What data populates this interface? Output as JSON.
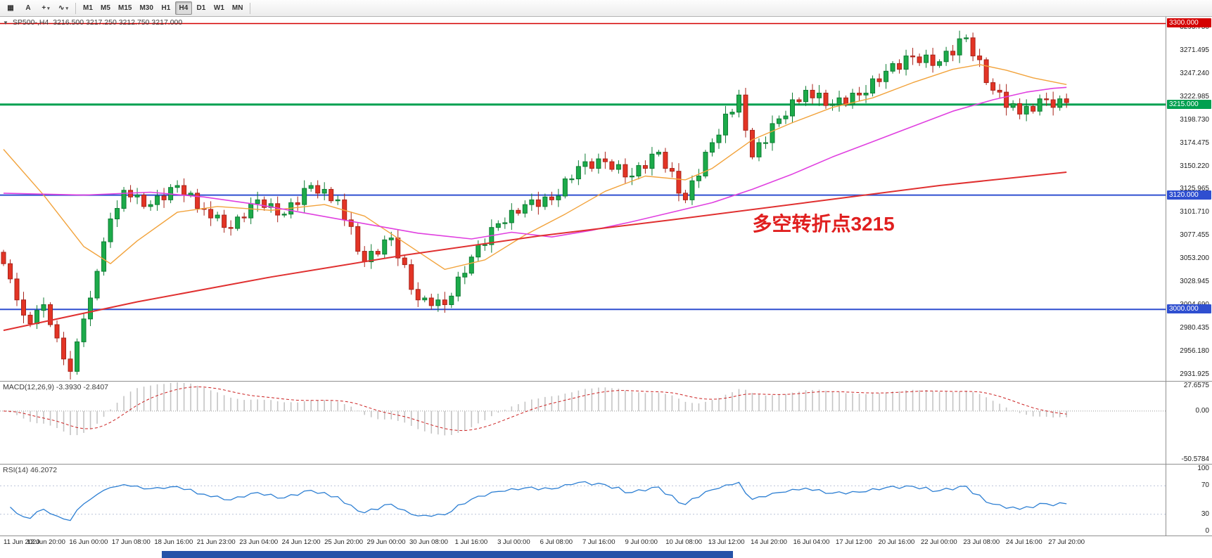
{
  "toolbar": {
    "icons": [
      {
        "name": "tile-windows-icon",
        "glyph": "▦",
        "dropdown": false
      },
      {
        "name": "text-label-icon",
        "glyph": "A",
        "dropdown": false
      },
      {
        "name": "crosshair-icon",
        "glyph": "+",
        "dropdown": true
      },
      {
        "name": "indicators-zigzag-icon",
        "glyph": "∿",
        "dropdown": true
      }
    ],
    "timeframes": [
      {
        "label": "M1",
        "active": false
      },
      {
        "label": "M5",
        "active": false
      },
      {
        "label": "M15",
        "active": false
      },
      {
        "label": "M30",
        "active": false
      },
      {
        "label": "H1",
        "active": false
      },
      {
        "label": "H4",
        "active": true
      },
      {
        "label": "D1",
        "active": false
      },
      {
        "label": "W1",
        "active": false
      },
      {
        "label": "MN",
        "active": false
      }
    ]
  },
  "chart_header": {
    "collapse_icon": "▼",
    "symbol_tf": "SP500-,H4",
    "ohlc": "3216.500 3217.250 3212.750 3217.000"
  },
  "annotation": {
    "text": "多空转折点3215",
    "color": "#e01f1f",
    "index": 112,
    "price": 3085,
    "font_size": 28
  },
  "price_scale": {
    "ticks": [
      3295.75,
      3271.495,
      3247.24,
      3222.985,
      3198.73,
      3174.475,
      3150.22,
      3125.965,
      3101.71,
      3077.455,
      3053.2,
      3028.945,
      3004.69,
      2980.435,
      2956.18,
      2931.925
    ],
    "badges": [
      {
        "price": 3300,
        "label": "3300.000",
        "color": "#d40000"
      },
      {
        "price": 3215,
        "label": "3215.000",
        "color": "#00a050"
      },
      {
        "price": 3120,
        "label": "3120.000",
        "color": "#2f4fd0"
      },
      {
        "price": 3000,
        "label": "3000.000",
        "color": "#2f4fd0"
      }
    ]
  },
  "macd": {
    "label": "MACD(12,26,9) -3.3930 -2.8407",
    "ticks": [
      {
        "value": 27.6575,
        "label": "27.6575"
      },
      {
        "value": 0,
        "label": "0.00"
      },
      {
        "value": -50.5784,
        "label": "-50.5784"
      }
    ],
    "range": [
      -52,
      29
    ],
    "bar_color": "#c4c4c4",
    "signal_color": "#cc2222"
  },
  "rsi": {
    "label": "RSI(14) 46.2072",
    "ticks": [
      {
        "value": 100,
        "label": "100"
      },
      {
        "value": 70,
        "label": "70"
      },
      {
        "value": 30,
        "label": "30"
      },
      {
        "value": 0,
        "label": "0"
      }
    ],
    "levels": [
      70,
      30
    ],
    "line_color": "#2d7fd3"
  },
  "time_axis": {
    "labels": [
      "11 Jun 2020",
      "12 Jun 20:00",
      "16 Jun 00:00",
      "17 Jun 08:00",
      "18 Jun 16:00",
      "21 Jun 23:00",
      "23 Jun 04:00",
      "24 Jun 12:00",
      "25 Jun 20:00",
      "29 Jun 00:00",
      "30 Jun 08:00",
      "1 Jul 16:00",
      "3 Jul 00:00",
      "6 Jul 08:00",
      "7 Jul 16:00",
      "9 Jul 00:00",
      "10 Jul 08:00",
      "13 Jul 12:00",
      "14 Jul 20:00",
      "16 Jul 04:00",
      "17 Jul 12:00",
      "20 Jul 16:00",
      "22 Jul 00:00",
      "23 Jul 08:00",
      "24 Jul 16:00",
      "27 Jul 20:00"
    ]
  },
  "chart_data": {
    "type": "candlestick",
    "symbol": "SP500-",
    "timeframe": "H4",
    "title": "SP500-,H4",
    "last_bar": {
      "open": 3216.5,
      "high": 3217.25,
      "low": 3212.75,
      "close": 3217.0
    },
    "price_range": [
      2925,
      3307
    ],
    "open_first": 3060,
    "closes": [
      3048,
      3032,
      3010,
      2994,
      2985,
      2999,
      3005,
      2984,
      2970,
      2948,
      2935,
      2966,
      2990,
      3012,
      3040,
      3071,
      3095,
      3106,
      3125,
      3118,
      3120,
      3108,
      3110,
      3119,
      3115,
      3128,
      3130,
      3120,
      3122,
      3106,
      3105,
      3096,
      3099,
      3086,
      3085,
      3097,
      3096,
      3111,
      3115,
      3107,
      3111,
      3099,
      3100,
      3112,
      3110,
      3127,
      3130,
      3122,
      3126,
      3114,
      3115,
      3094,
      3087,
      3061,
      3050,
      3061,
      3058,
      3073,
      3075,
      3054,
      3047,
      3021,
      3010,
      3012,
      3004,
      3010,
      3005,
      3014,
      3034,
      3038,
      3055,
      3068,
      3068,
      3086,
      3090,
      3091,
      3104,
      3101,
      3110,
      3115,
      3108,
      3118,
      3115,
      3119,
      3137,
      3137,
      3150,
      3155,
      3148,
      3158,
      3155,
      3147,
      3152,
      3139,
      3140,
      3151,
      3148,
      3163,
      3165,
      3148,
      3145,
      3122,
      3115,
      3135,
      3140,
      3165,
      3175,
      3183,
      3205,
      3207,
      3225,
      3188,
      3160,
      3175,
      3175,
      3195,
      3200,
      3203,
      3220,
      3218,
      3230,
      3222,
      3227,
      3214,
      3215,
      3222,
      3215,
      3227,
      3225,
      3227,
      3242,
      3239,
      3250,
      3258,
      3252,
      3266,
      3265,
      3259,
      3267,
      3256,
      3260,
      3271,
      3267,
      3284,
      3285,
      3266,
      3262,
      3238,
      3230,
      3228,
      3212,
      3216,
      3205,
      3213,
      3208,
      3221,
      3220,
      3212,
      3221,
      3217
    ],
    "up_color": "#1cab4a",
    "up_border": "#0e7c33",
    "down_color": "#e33425",
    "down_border": "#a8231a",
    "moving_averages": [
      {
        "name": "ma-fast-orange",
        "color": "#f2a33c",
        "width": 1.4,
        "points": [
          [
            0,
            3168
          ],
          [
            6,
            3120
          ],
          [
            12,
            3066
          ],
          [
            16,
            3048
          ],
          [
            20,
            3072
          ],
          [
            26,
            3102
          ],
          [
            32,
            3108
          ],
          [
            40,
            3104
          ],
          [
            48,
            3110
          ],
          [
            54,
            3098
          ],
          [
            60,
            3070
          ],
          [
            66,
            3042
          ],
          [
            72,
            3052
          ],
          [
            78,
            3078
          ],
          [
            84,
            3100
          ],
          [
            90,
            3124
          ],
          [
            96,
            3140
          ],
          [
            102,
            3136
          ],
          [
            106,
            3148
          ],
          [
            112,
            3178
          ],
          [
            118,
            3196
          ],
          [
            124,
            3212
          ],
          [
            130,
            3222
          ],
          [
            136,
            3238
          ],
          [
            142,
            3252
          ],
          [
            146,
            3257
          ],
          [
            150,
            3251
          ],
          [
            154,
            3243
          ],
          [
            159,
            3236
          ]
        ]
      },
      {
        "name": "ma-mid-magenta",
        "color": "#e040e0",
        "width": 1.6,
        "points": [
          [
            0,
            3122
          ],
          [
            12,
            3120
          ],
          [
            22,
            3123
          ],
          [
            30,
            3118
          ],
          [
            38,
            3110
          ],
          [
            46,
            3100
          ],
          [
            54,
            3090
          ],
          [
            62,
            3080
          ],
          [
            70,
            3074
          ],
          [
            76,
            3081
          ],
          [
            82,
            3076
          ],
          [
            88,
            3083
          ],
          [
            94,
            3092
          ],
          [
            100,
            3102
          ],
          [
            106,
            3112
          ],
          [
            112,
            3126
          ],
          [
            118,
            3142
          ],
          [
            124,
            3160
          ],
          [
            130,
            3176
          ],
          [
            136,
            3192
          ],
          [
            142,
            3208
          ],
          [
            148,
            3220
          ],
          [
            153,
            3228
          ],
          [
            157,
            3232
          ],
          [
            159,
            3233
          ]
        ]
      },
      {
        "name": "ma-slow-red",
        "color": "#e03030",
        "width": 2,
        "points": [
          [
            0,
            2978
          ],
          [
            20,
            3008
          ],
          [
            40,
            3034
          ],
          [
            60,
            3057
          ],
          [
            80,
            3077
          ],
          [
            100,
            3094
          ],
          [
            120,
            3112
          ],
          [
            140,
            3130
          ],
          [
            159,
            3144
          ]
        ]
      }
    ],
    "levels": [
      {
        "price": 3300,
        "color": "#d40000",
        "width": 1.5
      },
      {
        "price": 3215,
        "color": "#00a050",
        "width": 3
      },
      {
        "price": 3120,
        "color": "#2f4fd0",
        "width": 2
      },
      {
        "price": 3000,
        "color": "#2f4fd0",
        "width": 2
      }
    ],
    "indicators": {
      "macd": {
        "fast": 12,
        "slow": 26,
        "signal": 9,
        "main_value": -3.393,
        "signal_value": -2.8407
      },
      "rsi": {
        "period": 14,
        "value": 46.2072
      }
    }
  },
  "bottom_fragment": {
    "color": "#2553a8"
  }
}
